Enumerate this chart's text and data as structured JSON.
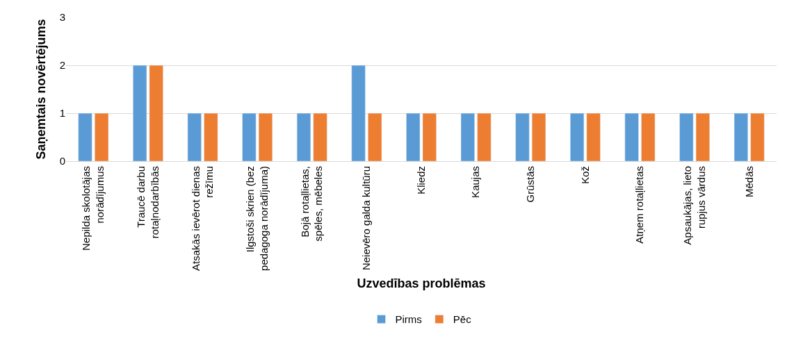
{
  "chart_data": {
    "type": "bar",
    "xlabel": "Uzvedības problēmas",
    "ylabel": "Saņemtais novērtējums",
    "categories": [
      "Nepilda skolotājas\nnorādījumus",
      "Traucē darbu\nrotaļnodarbībās",
      "Atsakās ievērot dienas\nrežīmu",
      "Ilgstoši skrien (bez\npedagoga norādījuma)",
      "Bojā rotaļlietas,\nspēles, mēbeles",
      "Neievēro galda kultūru",
      "Kliedz",
      "Kaujas",
      "Grūstās",
      "Kož",
      "Atņem rotaļlietas",
      "Apsaukājas, lieto\nrupjus vārdus",
      "Mēdās"
    ],
    "series": [
      {
        "name": "Pirms",
        "color": "#5b9bd5",
        "values": [
          1,
          2,
          1,
          1,
          1,
          2,
          1,
          1,
          1,
          1,
          1,
          1,
          1
        ]
      },
      {
        "name": "Pēc",
        "color": "#ed7d31",
        "values": [
          1,
          2,
          1,
          1,
          1,
          1,
          1,
          1,
          1,
          1,
          1,
          1,
          1
        ]
      }
    ],
    "ylim": [
      0,
      3
    ],
    "yticks": [
      0,
      1,
      2,
      3
    ],
    "grid": "y",
    "legend": "bottom"
  }
}
